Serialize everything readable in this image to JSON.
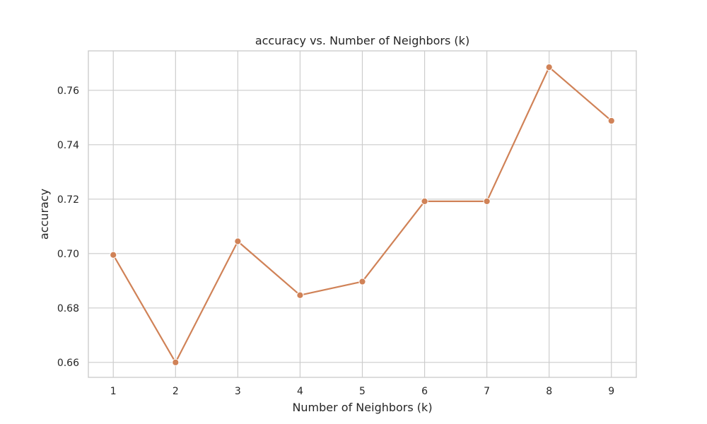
{
  "chart_data": {
    "type": "line",
    "title": "accuracy vs. Number of Neighbors (k)",
    "xlabel": "Number of Neighbors (k)",
    "ylabel": "accuracy",
    "x": [
      1,
      2,
      3,
      4,
      5,
      6,
      7,
      8,
      9
    ],
    "x_tick_labels": [
      "1",
      "2",
      "3",
      "4",
      "5",
      "6",
      "7",
      "8",
      "9"
    ],
    "y_ticks": [
      0.66,
      0.68,
      0.7,
      0.72,
      0.74,
      0.76
    ],
    "y_tick_labels": [
      "0.66",
      "0.68",
      "0.70",
      "0.72",
      "0.74",
      "0.76"
    ],
    "xlim": [
      0.6,
      9.4
    ],
    "ylim": [
      0.6545,
      0.7745
    ],
    "grid": true,
    "legend": "none",
    "series": [
      {
        "values": [
          0.6995,
          0.66,
          0.7045,
          0.6847,
          0.6897,
          0.7192,
          0.7192,
          0.7685,
          0.7488
        ],
        "color": "#d08257"
      }
    ]
  }
}
